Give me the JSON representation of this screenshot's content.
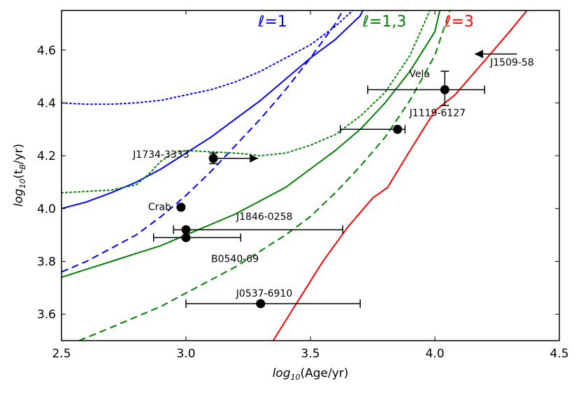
{
  "chart_data": {
    "type": "line",
    "xlabel_prefix": "log",
    "xlabel_sub": "10",
    "xlabel_rest": "(Age/yr)",
    "ylabel_prefix": "log",
    "ylabel_sub": "10",
    "ylabel_mid": "(t",
    "ylabel_sub2": "B",
    "ylabel_rest": "/yr)",
    "xlim": [
      2.5,
      4.5
    ],
    "ylim": [
      3.5,
      4.75
    ],
    "xticks": [
      2.5,
      3.0,
      3.5,
      4.0,
      4.5
    ],
    "xtick_labels": [
      "2.5",
      "3.0",
      "3.5",
      "4.0",
      "4.5"
    ],
    "yticks": [
      3.6,
      3.8,
      4.0,
      4.2,
      4.4,
      4.6
    ],
    "ytick_labels": [
      "3.6",
      "3.8",
      "4.0",
      "4.2",
      "4.4",
      "4.6"
    ],
    "series_labels": [
      {
        "ell": "ℓ",
        "rest": "=1",
        "color": "#0000ff",
        "x": 3.29,
        "y": 4.71
      },
      {
        "ell": "ℓ",
        "rest": "=1,3",
        "color": "#008000",
        "x": 3.71,
        "y": 4.71
      },
      {
        "ell": "ℓ",
        "rest": "=3",
        "color": "#ff0000",
        "x": 4.04,
        "y": 4.71
      }
    ],
    "series": [
      {
        "name": "l=1 solid",
        "color": "#0000ff",
        "dash": "solid",
        "x": [
          2.5,
          2.6,
          2.7,
          2.8,
          2.9,
          3.0,
          3.1,
          3.2,
          3.3,
          3.4,
          3.5,
          3.6,
          3.7,
          3.71
        ],
        "y": [
          4.0,
          4.025,
          4.06,
          4.1,
          4.15,
          4.21,
          4.27,
          4.34,
          4.41,
          4.49,
          4.57,
          4.64,
          4.73,
          4.75
        ]
      },
      {
        "name": "l=1 dashed",
        "color": "#0000ff",
        "dash": "dashed",
        "x": [
          2.5,
          2.6,
          2.7,
          2.8,
          2.9,
          3.0,
          3.1,
          3.2,
          3.3,
          3.4,
          3.5,
          3.6,
          3.63
        ],
        "y": [
          3.76,
          3.8,
          3.85,
          3.9,
          3.97,
          4.05,
          4.14,
          4.24,
          4.34,
          4.45,
          4.57,
          4.7,
          4.75
        ]
      },
      {
        "name": "l=1 dotted",
        "color": "#0000ff",
        "dash": "dotted",
        "x": [
          2.5,
          2.6,
          2.7,
          2.8,
          2.9,
          3.0,
          3.1,
          3.2,
          3.3,
          3.4,
          3.5,
          3.6,
          3.67
        ],
        "y": [
          4.4,
          4.395,
          4.395,
          4.4,
          4.41,
          4.43,
          4.45,
          4.48,
          4.52,
          4.57,
          4.62,
          4.69,
          4.75
        ]
      },
      {
        "name": "l=1,3 solid",
        "color": "#008000",
        "dash": "solid",
        "x": [
          2.5,
          2.6,
          2.7,
          2.8,
          2.9,
          3.0,
          3.1,
          3.2,
          3.3,
          3.4,
          3.5,
          3.6,
          3.7,
          3.8,
          3.9,
          4.0,
          4.02
        ],
        "y": [
          3.74,
          3.77,
          3.8,
          3.83,
          3.86,
          3.9,
          3.94,
          3.98,
          4.03,
          4.08,
          4.15,
          4.22,
          4.3,
          4.4,
          4.52,
          4.67,
          4.75
        ]
      },
      {
        "name": "l=1,3 dashed",
        "color": "#008000",
        "dash": "dashed",
        "x": [
          2.57,
          2.7,
          2.8,
          2.9,
          3.0,
          3.1,
          3.2,
          3.3,
          3.4,
          3.5,
          3.6,
          3.7,
          3.8,
          3.9,
          4.0,
          4.06
        ],
        "y": [
          3.5,
          3.55,
          3.59,
          3.63,
          3.68,
          3.73,
          3.78,
          3.84,
          3.9,
          3.97,
          4.06,
          4.16,
          4.27,
          4.41,
          4.58,
          4.75
        ]
      },
      {
        "name": "l=1,3 dotted",
        "color": "#008000",
        "dash": "dotted",
        "x": [
          2.5,
          2.6,
          2.7,
          2.8,
          2.85,
          2.9,
          2.95,
          3.0,
          3.1,
          3.2,
          3.3,
          3.4,
          3.5,
          3.6,
          3.7,
          3.8,
          3.9,
          3.98
        ],
        "y": [
          4.06,
          4.065,
          4.07,
          4.09,
          4.13,
          4.18,
          4.21,
          4.22,
          4.215,
          4.21,
          4.2,
          4.21,
          4.24,
          4.28,
          4.35,
          4.44,
          4.58,
          4.75
        ]
      },
      {
        "name": "l=3 solid",
        "color": "#ff0000",
        "dash": "solid",
        "x": [
          3.35,
          3.45,
          3.55,
          3.65,
          3.75,
          3.81,
          3.9,
          4.0,
          4.08,
          4.2,
          4.3,
          4.37
        ],
        "y": [
          3.5,
          3.65,
          3.8,
          3.93,
          4.04,
          4.08,
          4.22,
          4.37,
          4.43,
          4.56,
          4.67,
          4.75
        ]
      }
    ],
    "points": [
      {
        "name": "Crab",
        "x": 2.98,
        "y": 4.005,
        "label_dx": -47,
        "label_dy": 4
      },
      {
        "name": "J1734-3333",
        "x": 3.11,
        "y": 4.19,
        "label_dx": -115,
        "label_dy": -1,
        "yerr": [
          4.17,
          4.21
        ],
        "arrow_to": 3.29
      },
      {
        "name": "J1846-0258",
        "x": 3.0,
        "y": 3.92,
        "label_dx": 72,
        "label_dy": -14,
        "xerr": [
          2.95,
          3.63
        ]
      },
      {
        "name": "B0540-69",
        "x": 3.0,
        "y": 3.89,
        "label_dx": 36,
        "label_dy": 35,
        "xerr": [
          2.87,
          3.22
        ]
      },
      {
        "name": "J0537-6910",
        "x": 3.3,
        "y": 3.64,
        "label_dx": -35,
        "label_dy": -10,
        "xerr": [
          3.0,
          3.7
        ]
      },
      {
        "name": "J1119-6127",
        "x": 3.85,
        "y": 4.3,
        "label_dx": 17,
        "label_dy": -19,
        "xerr": [
          3.62,
          3.88
        ]
      },
      {
        "name": "Vela",
        "x": 4.04,
        "y": 4.45,
        "label_dx": -51,
        "label_dy": -18,
        "xerr": [
          3.73,
          4.2
        ],
        "yerr": [
          4.39,
          4.52
        ]
      },
      {
        "name": "J1509-58",
        "x": null,
        "y": 4.585,
        "label_dx": 0,
        "label_dy": 0,
        "arrow_from": 4.33,
        "arrow_to": 4.16,
        "label_x": 4.18,
        "label_y": 4.555
      }
    ]
  }
}
